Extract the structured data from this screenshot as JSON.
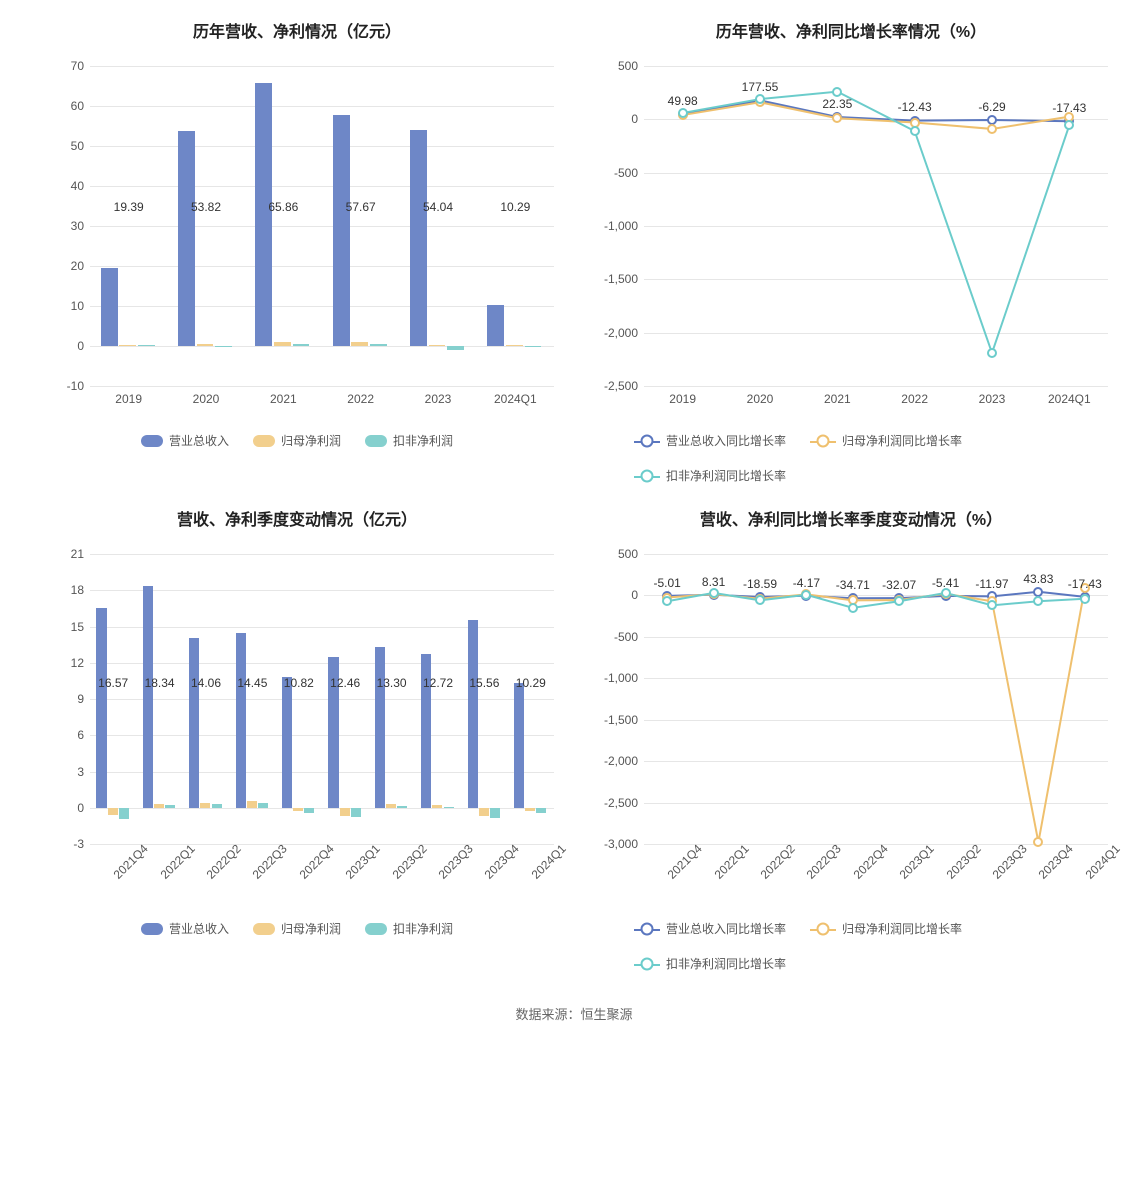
{
  "source_text": "数据来源：恒生聚源",
  "palette": {
    "blue": "#6e87c7",
    "yellow": "#f2cf8d",
    "teal": "#85d0ce",
    "line_blue": "#5b77bf",
    "line_yellow": "#efc06e",
    "line_teal": "#6bcccb",
    "grid": "#e6e6e6",
    "bg": "#ffffff",
    "text": "#333333",
    "axis_text": "#555555"
  },
  "chart1": {
    "title": "历年营收、净利情况（亿元）",
    "type": "bar",
    "categories": [
      "2019",
      "2020",
      "2021",
      "2022",
      "2023",
      "2024Q1"
    ],
    "series": [
      {
        "key": "s1",
        "name": "营业总收入",
        "color": "#6e87c7",
        "values": [
          19.39,
          53.82,
          65.86,
          57.67,
          54.04,
          10.29
        ]
      },
      {
        "key": "s2",
        "name": "归母净利润",
        "color": "#f2cf8d",
        "values": [
          0.3,
          0.5,
          0.9,
          1.0,
          0.2,
          0.15
        ]
      },
      {
        "key": "s3",
        "name": "扣非净利润",
        "color": "#85d0ce",
        "values": [
          0.2,
          -0.3,
          0.6,
          0.5,
          -1.0,
          -0.25
        ]
      }
    ],
    "value_labels": [
      19.39,
      53.82,
      65.86,
      57.67,
      54.04,
      10.29
    ],
    "ylim": [
      -10,
      70
    ],
    "yticks": [
      -10,
      0,
      10,
      20,
      30,
      40,
      50,
      60,
      70
    ],
    "bar_group_width": 0.72,
    "label_fontsize": 12,
    "title_fontsize": 16,
    "value_label_offset_pct": 42
  },
  "chart2": {
    "title": "历年营收、净利同比增长率情况（%）",
    "type": "line",
    "categories": [
      "2019",
      "2020",
      "2021",
      "2022",
      "2023",
      "2024Q1"
    ],
    "series": [
      {
        "key": "s1",
        "name": "营业总收入同比增长率",
        "color": "#5b77bf",
        "values": [
          49.98,
          177.55,
          22.35,
          -12.43,
          -6.29,
          -17.43
        ]
      },
      {
        "key": "s2",
        "name": "归母净利润同比增长率",
        "color": "#efc06e",
        "values": [
          40,
          160,
          10,
          -30,
          -90,
          25
        ]
      },
      {
        "key": "s3",
        "name": "扣非净利润同比增长率",
        "color": "#6bcccb",
        "values": [
          60,
          190,
          260,
          -110,
          -2190,
          -55
        ]
      }
    ],
    "point_labels": [
      {
        "cat": "2019",
        "text": "49.98"
      },
      {
        "cat": "2020",
        "text": "177.55"
      },
      {
        "cat": "2021",
        "text": "22.35"
      },
      {
        "cat": "2022",
        "text": "-12.43"
      },
      {
        "cat": "2023",
        "text": "-6.29"
      },
      {
        "cat": "2024Q1",
        "text": "-17.43"
      }
    ],
    "ylim": [
      -2500,
      500
    ],
    "yticks": [
      -2500,
      -2000,
      -1500,
      -1000,
      -500,
      0,
      500
    ],
    "marker_radius": 5,
    "line_width": 2,
    "label_fontsize": 12,
    "label_offset_series": "s1"
  },
  "chart3": {
    "title": "营收、净利季度变动情况（亿元）",
    "type": "bar",
    "categories": [
      "2021Q4",
      "2022Q1",
      "2022Q2",
      "2022Q3",
      "2022Q4",
      "2023Q1",
      "2023Q2",
      "2023Q3",
      "2023Q4",
      "2024Q1"
    ],
    "series": [
      {
        "key": "s1",
        "name": "营业总收入",
        "color": "#6e87c7",
        "values": [
          16.57,
          18.34,
          14.06,
          14.45,
          10.82,
          12.46,
          13.3,
          12.72,
          15.56,
          10.29
        ]
      },
      {
        "key": "s2",
        "name": "归母净利润",
        "color": "#f2cf8d",
        "values": [
          -0.6,
          0.35,
          0.4,
          0.55,
          -0.3,
          -0.65,
          0.3,
          0.2,
          -0.7,
          -0.3
        ]
      },
      {
        "key": "s3",
        "name": "扣非净利润",
        "color": "#85d0ce",
        "values": [
          -0.9,
          0.25,
          0.3,
          0.4,
          -0.45,
          -0.8,
          0.15,
          0.1,
          -0.85,
          -0.45
        ]
      }
    ],
    "value_labels": [
      16.57,
      18.34,
      14.06,
      14.45,
      10.82,
      12.46,
      13.3,
      12.72,
      15.56,
      10.29
    ],
    "ylim": [
      -3,
      21
    ],
    "yticks": [
      -3,
      0,
      3,
      6,
      9,
      12,
      15,
      18,
      21
    ],
    "bar_group_width": 0.72,
    "xtick_rotate": true,
    "label_fontsize": 12,
    "value_label_offset_pct": 42
  },
  "chart4": {
    "title": "营收、净利同比增长率季度变动情况（%）",
    "type": "line",
    "categories": [
      "2021Q4",
      "2022Q1",
      "2022Q2",
      "2022Q3",
      "2022Q4",
      "2023Q1",
      "2023Q2",
      "2023Q3",
      "2023Q4",
      "2024Q1"
    ],
    "series": [
      {
        "key": "s1",
        "name": "营业总收入同比增长率",
        "color": "#5b77bf",
        "values": [
          -5.01,
          8.31,
          -18.59,
          -4.17,
          -34.71,
          -32.07,
          -5.41,
          -11.97,
          43.83,
          -17.43
        ]
      },
      {
        "key": "s2",
        "name": "归母净利润同比增长率",
        "color": "#efc06e",
        "values": [
          -25,
          15,
          -40,
          12,
          -60,
          -55,
          20,
          -70,
          -2980,
          90
        ]
      },
      {
        "key": "s3",
        "name": "扣非净利润同比增长率",
        "color": "#6bcccb",
        "values": [
          -70,
          30,
          -60,
          8,
          -150,
          -70,
          30,
          -120,
          -70,
          -40
        ]
      }
    ],
    "point_labels": [
      {
        "cat": "2021Q4",
        "text": "-5.01"
      },
      {
        "cat": "2022Q1",
        "text": "8.31"
      },
      {
        "cat": "2022Q2",
        "text": "-18.59"
      },
      {
        "cat": "2022Q3",
        "text": "-4.17"
      },
      {
        "cat": "2022Q4",
        "text": "-34.71"
      },
      {
        "cat": "2023Q1",
        "text": "-32.07"
      },
      {
        "cat": "2023Q2",
        "text": "-5.41"
      },
      {
        "cat": "2023Q3",
        "text": "-11.97"
      },
      {
        "cat": "2023Q4",
        "text": "43.83"
      },
      {
        "cat": "2024Q1",
        "text": "-17.43"
      }
    ],
    "ylim": [
      -3000,
      500
    ],
    "yticks": [
      -3000,
      -2500,
      -2000,
      -1500,
      -1000,
      -500,
      0,
      500
    ],
    "marker_radius": 5,
    "line_width": 2,
    "xtick_rotate": true,
    "label_fontsize": 12,
    "label_offset_series": "s1"
  }
}
